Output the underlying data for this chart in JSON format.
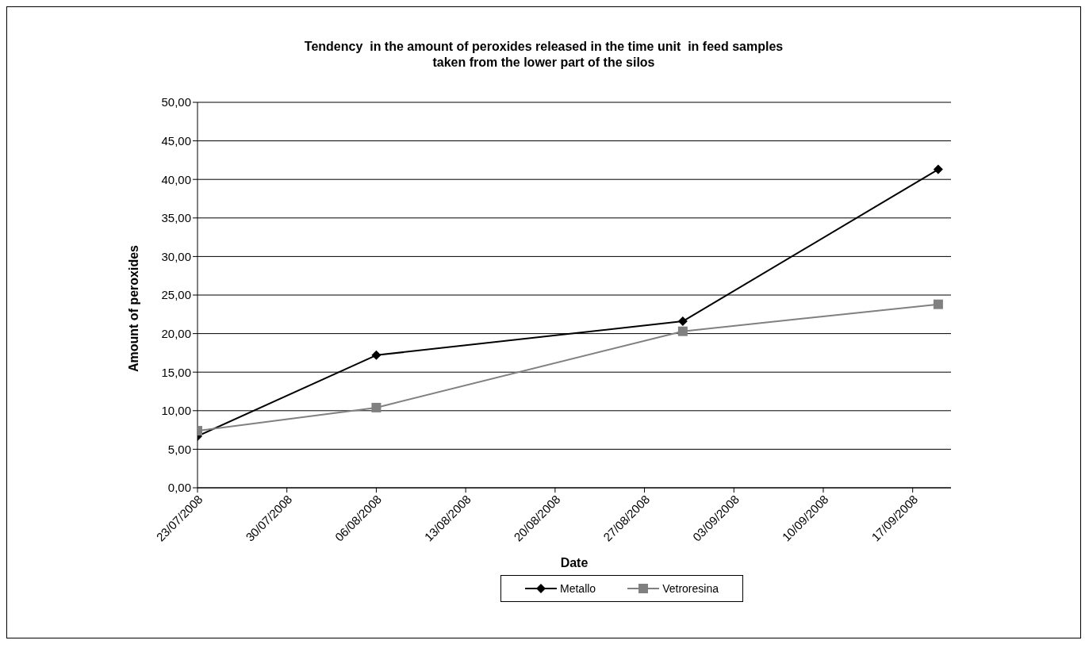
{
  "chart_data": {
    "type": "line",
    "title": "Tendency  in the amount of peroxides released in the time unit  in feed samples\ntaken from the lower part of the silos",
    "xlabel": "Date",
    "ylabel": "Amount of peroxides",
    "x": [
      "2008-07-23",
      "2008-08-06",
      "2008-08-30",
      "2008-09-19"
    ],
    "series": [
      {
        "name": "Metallo",
        "color": "#000000",
        "marker": "diamond",
        "values": [
          6.7,
          17.2,
          21.6,
          41.3
        ]
      },
      {
        "name": "Vetroresina",
        "color": "#808080",
        "marker": "square",
        "values": [
          7.4,
          10.4,
          20.3,
          23.8
        ]
      }
    ],
    "xlim": [
      "2008-07-23",
      "2008-09-20"
    ],
    "xticks": [
      {
        "value": "2008-07-23",
        "label": "23/07/2008"
      },
      {
        "value": "2008-07-30",
        "label": "30/07/2008"
      },
      {
        "value": "2008-08-06",
        "label": "06/08/2008"
      },
      {
        "value": "2008-08-13",
        "label": "13/08/2008"
      },
      {
        "value": "2008-08-20",
        "label": "20/08/2008"
      },
      {
        "value": "2008-08-27",
        "label": "27/08/2008"
      },
      {
        "value": "2008-09-03",
        "label": "03/09/2008"
      },
      {
        "value": "2008-09-10",
        "label": "10/09/2008"
      },
      {
        "value": "2008-09-17",
        "label": "17/09/2008"
      }
    ],
    "ylim": [
      0,
      50
    ],
    "yticks": [
      {
        "value": 0,
        "label": "0,00"
      },
      {
        "value": 5,
        "label": "5,00"
      },
      {
        "value": 10,
        "label": "10,00"
      },
      {
        "value": 15,
        "label": "15,00"
      },
      {
        "value": 20,
        "label": "20,00"
      },
      {
        "value": 25,
        "label": "25,00"
      },
      {
        "value": 30,
        "label": "30,00"
      },
      {
        "value": 35,
        "label": "35,00"
      },
      {
        "value": 40,
        "label": "40,00"
      },
      {
        "value": 45,
        "label": "45,00"
      },
      {
        "value": 50,
        "label": "50,00"
      }
    ],
    "grid": "y",
    "legend": "bottom",
    "line_style": "solid"
  }
}
